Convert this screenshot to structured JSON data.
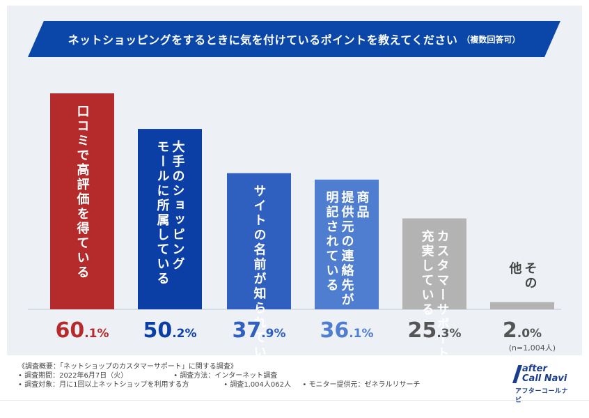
{
  "title": {
    "main": "ネットショッピングをするときに気を付けているポイントを教えてください",
    "sub": "（複数回答可）"
  },
  "chart_data": {
    "type": "bar",
    "title": "ネットショッピングをするときに気を付けているポイントを教えてください（複数回答可）",
    "categories": [
      "口コミで高評価を得ている",
      "大手のショッピングモールに所属している",
      "サイトの名前が知られている",
      "商品提供元の連絡先が明記されている",
      "カスタマーサポートが充実している",
      "その他"
    ],
    "category_lines": [
      [
        "口コミで高評価を得ている"
      ],
      [
        "大手のショッピング",
        "モールに所属している"
      ],
      [
        "サイトの名前が知られている"
      ],
      [
        "商品",
        "提供元の連絡先が",
        "明記されている"
      ],
      [
        "カスタマーサポートが",
        "充実している"
      ],
      [
        "その",
        "他"
      ]
    ],
    "values": [
      60.1,
      50.2,
      37.9,
      36.1,
      25.3,
      2.0
    ],
    "value_labels": [
      {
        "int": "60",
        "dec": ".1%"
      },
      {
        "int": "50",
        "dec": ".2%"
      },
      {
        "int": "37",
        "dec": ".9%"
      },
      {
        "int": "36",
        "dec": ".1%"
      },
      {
        "int": "25",
        "dec": ".3%"
      },
      {
        "int": "2",
        "dec": ".0%"
      }
    ],
    "bar_colors": [
      "#b52a2a",
      "#0b3fa6",
      "#2f5fbf",
      "#4f7ed0",
      "#b3b3b3",
      "#b3b3b3"
    ],
    "label_colors": [
      "#b52a2a",
      "#0b3fa6",
      "#2f5fbf",
      "#4f7ed0",
      "#555555",
      "#555555"
    ],
    "text_colors": [
      "#ffffff",
      "#ffffff",
      "#ffffff",
      "#ffffff",
      "#ffffff",
      "#333333"
    ],
    "ylim": [
      0,
      60.1
    ],
    "xlabel": "",
    "ylabel": "",
    "n_note": "(n=1,004人)"
  },
  "footer": {
    "line1": "《調査概要：「ネットショップのカスタマーサポート」に関する調査》",
    "period": "• 調査期間：2022年6月7日（火）",
    "method": "• 調査方法：インターネット調査",
    "target": "• 調査対象：月に1回以上ネットショップを利用する方",
    "count": "• 調査1,004人062人",
    "provider": "• モニター提供元：ゼネラルリサーチ"
  },
  "logo": {
    "line1": "after",
    "line2": "Call Navi",
    "line3": "アフターコールナビ"
  },
  "colors": {
    "banner": "#0a47a8",
    "panel": "#edf1f6",
    "baseline": "#bfc6d4"
  }
}
